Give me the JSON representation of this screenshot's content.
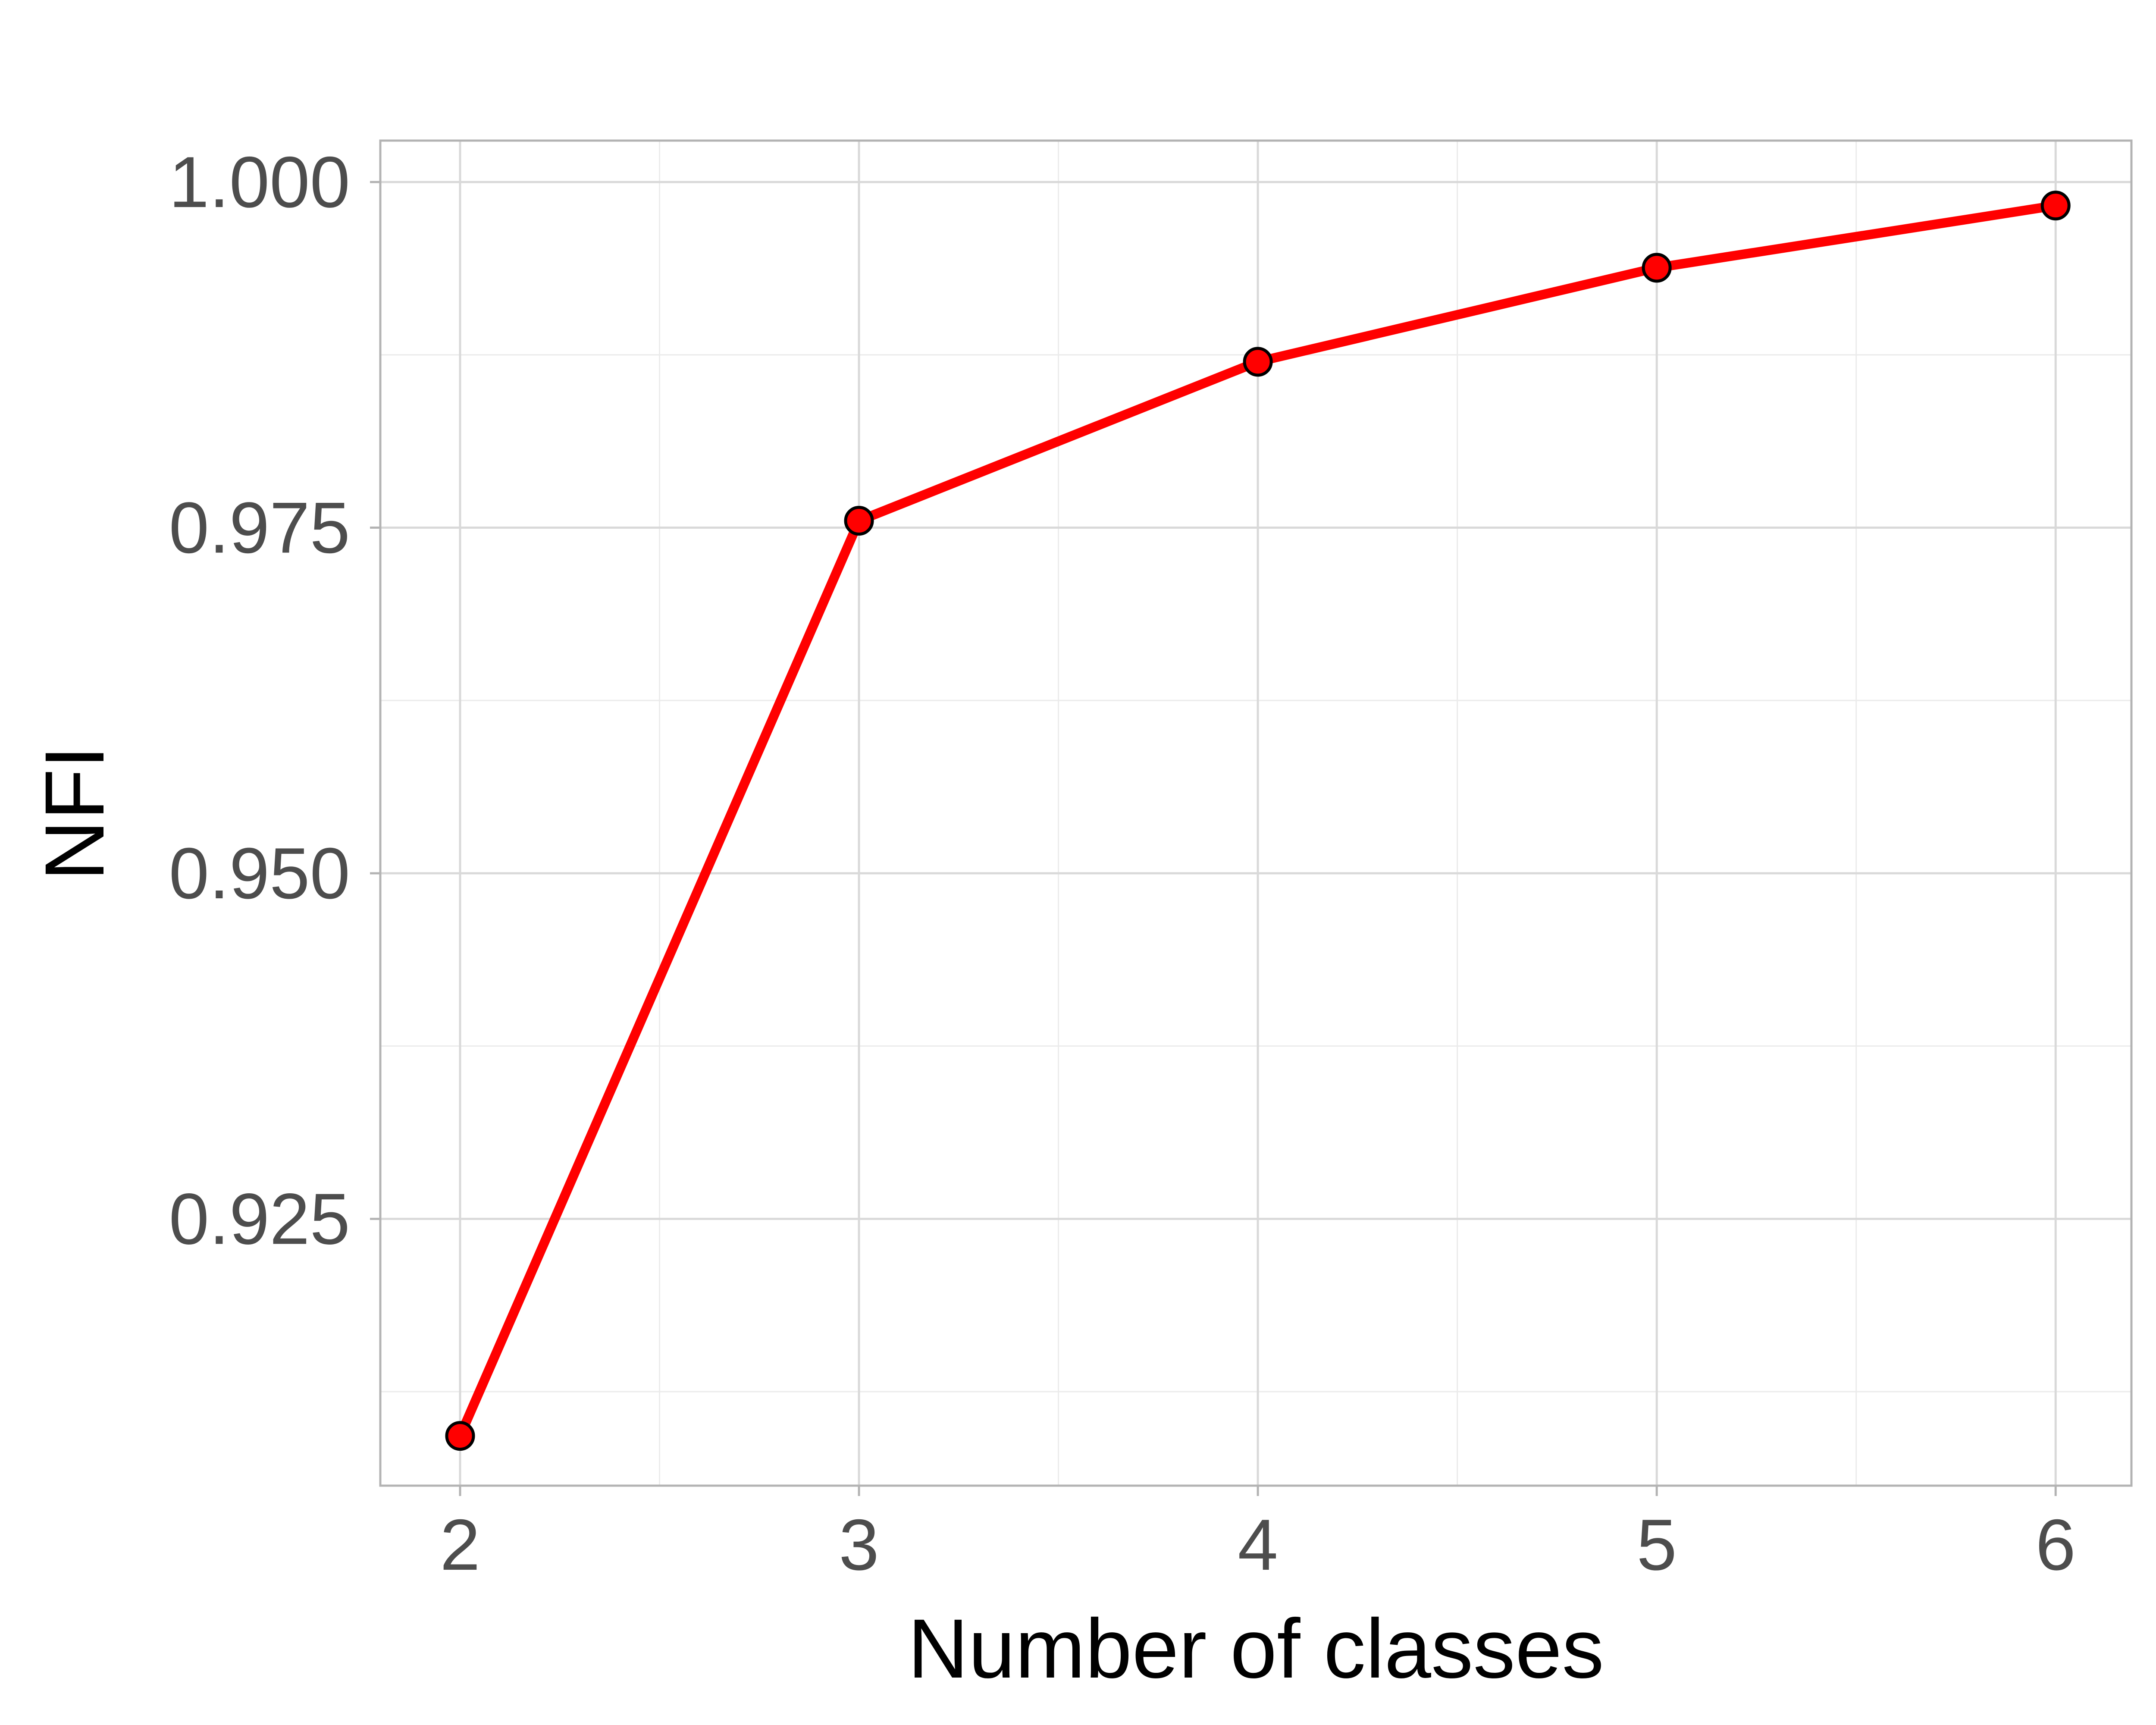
{
  "chart_data": {
    "type": "line",
    "title": "",
    "xlabel": "Number of classes",
    "ylabel": "NFI",
    "x": [
      2,
      3,
      4,
      5,
      6
    ],
    "series": [
      {
        "values": [
          0.9093,
          0.9755,
          0.987,
          0.9938,
          0.9983
        ]
      }
    ],
    "xticks": [
      "2",
      "3",
      "4",
      "5",
      "6"
    ],
    "yticks": [
      "0.925",
      "0.950",
      "0.975",
      "1.000"
    ],
    "ytick_values": [
      0.925,
      0.95,
      0.975,
      1.0
    ],
    "xlim": [
      1.8,
      6.19
    ],
    "ylim": [
      0.9057,
      1.003
    ],
    "grid": true,
    "legend": "none",
    "colors": {
      "line": "#ff0000",
      "marker_fill": "#ff0000",
      "marker_edge": "#000000",
      "grid_major": "#d9d9d9",
      "grid_minor": "#ebebeb",
      "panel_border": "#b3b3b3",
      "tick_text": "#4d4d4d",
      "axis_title": "#000000"
    }
  }
}
